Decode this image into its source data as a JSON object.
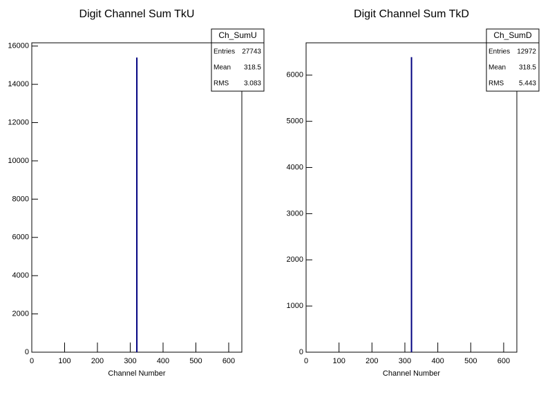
{
  "chart_data": [
    {
      "type": "histogram",
      "title": "Digit Channel Sum TkU",
      "x_label": "Channel Number",
      "bins": [
        318,
        319
      ],
      "counts": [
        15400
      ],
      "color": "#000080",
      "xlim": [
        0,
        640
      ],
      "xticks": [
        0,
        100,
        200,
        300,
        400,
        500,
        600
      ],
      "ylim": [
        0,
        16170
      ],
      "yticks": [
        0,
        2000,
        4000,
        6000,
        8000,
        10000,
        12000,
        14000,
        16000
      ],
      "stats": {
        "name": "Ch_SumU",
        "rows": [
          {
            "label": "Entries",
            "value": 27743
          },
          {
            "label": "Mean",
            "value": 318.5
          },
          {
            "label": "RMS",
            "value": 3.083
          }
        ]
      }
    },
    {
      "type": "histogram",
      "title": "Digit Channel Sum TkD",
      "x_label": "Channel Number",
      "bins": [
        318,
        319
      ],
      "counts": [
        6390
      ],
      "color": "#000080",
      "xlim": [
        0,
        640
      ],
      "xticks": [
        0,
        100,
        200,
        300,
        400,
        500,
        600
      ],
      "ylim": [
        0,
        6700
      ],
      "yticks": [
        0,
        1000,
        2000,
        3000,
        4000,
        5000,
        6000
      ],
      "stats": {
        "name": "Ch_SumD",
        "rows": [
          {
            "label": "Entries",
            "value": 12972
          },
          {
            "label": "Mean",
            "value": 318.5
          },
          {
            "label": "RMS",
            "value": 5.443
          }
        ]
      }
    }
  ]
}
